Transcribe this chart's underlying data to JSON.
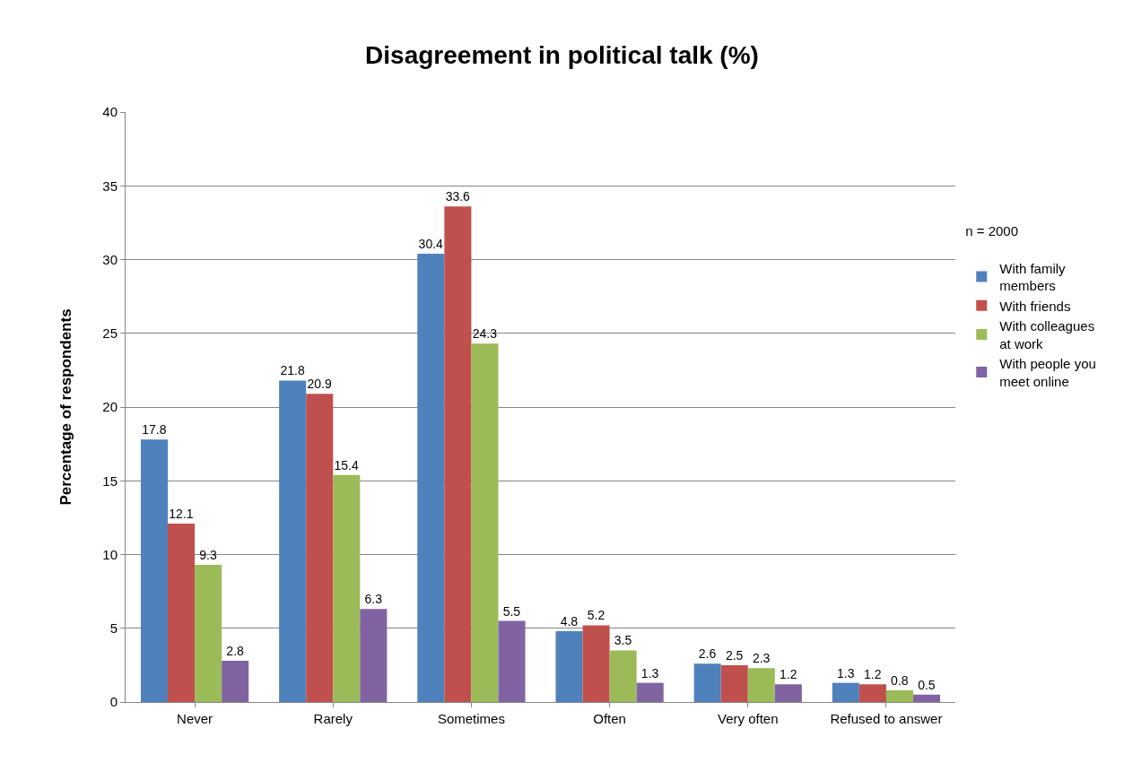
{
  "chart_data": {
    "type": "bar",
    "title": "Disagreement in political talk (%)",
    "ylabel": "Percentage of respondents",
    "legend_title": "n = 2000",
    "categories": [
      "Never",
      "Rarely",
      "Sometimes",
      "Often",
      "Very often",
      "Refused to answer"
    ],
    "series": [
      {
        "name": "With family members",
        "color": "#4f81bd",
        "values": [
          17.8,
          21.8,
          30.4,
          4.8,
          2.6,
          1.3
        ]
      },
      {
        "name": "With friends",
        "color": "#c0504d",
        "values": [
          12.1,
          20.9,
          33.6,
          5.2,
          2.5,
          1.2
        ]
      },
      {
        "name": "With colleagues at work",
        "color": "#9bbb59",
        "values": [
          9.3,
          15.4,
          24.3,
          3.5,
          2.3,
          0.8
        ]
      },
      {
        "name": "With people you meet online",
        "color": "#8064a2",
        "values": [
          2.8,
          6.3,
          5.5,
          1.3,
          1.2,
          0.5
        ]
      }
    ],
    "ylim": [
      0,
      40
    ],
    "yticks": [
      0,
      5,
      10,
      15,
      20,
      25,
      30,
      35,
      40
    ],
    "grid": "y",
    "legend": "right",
    "data_labels": true
  }
}
